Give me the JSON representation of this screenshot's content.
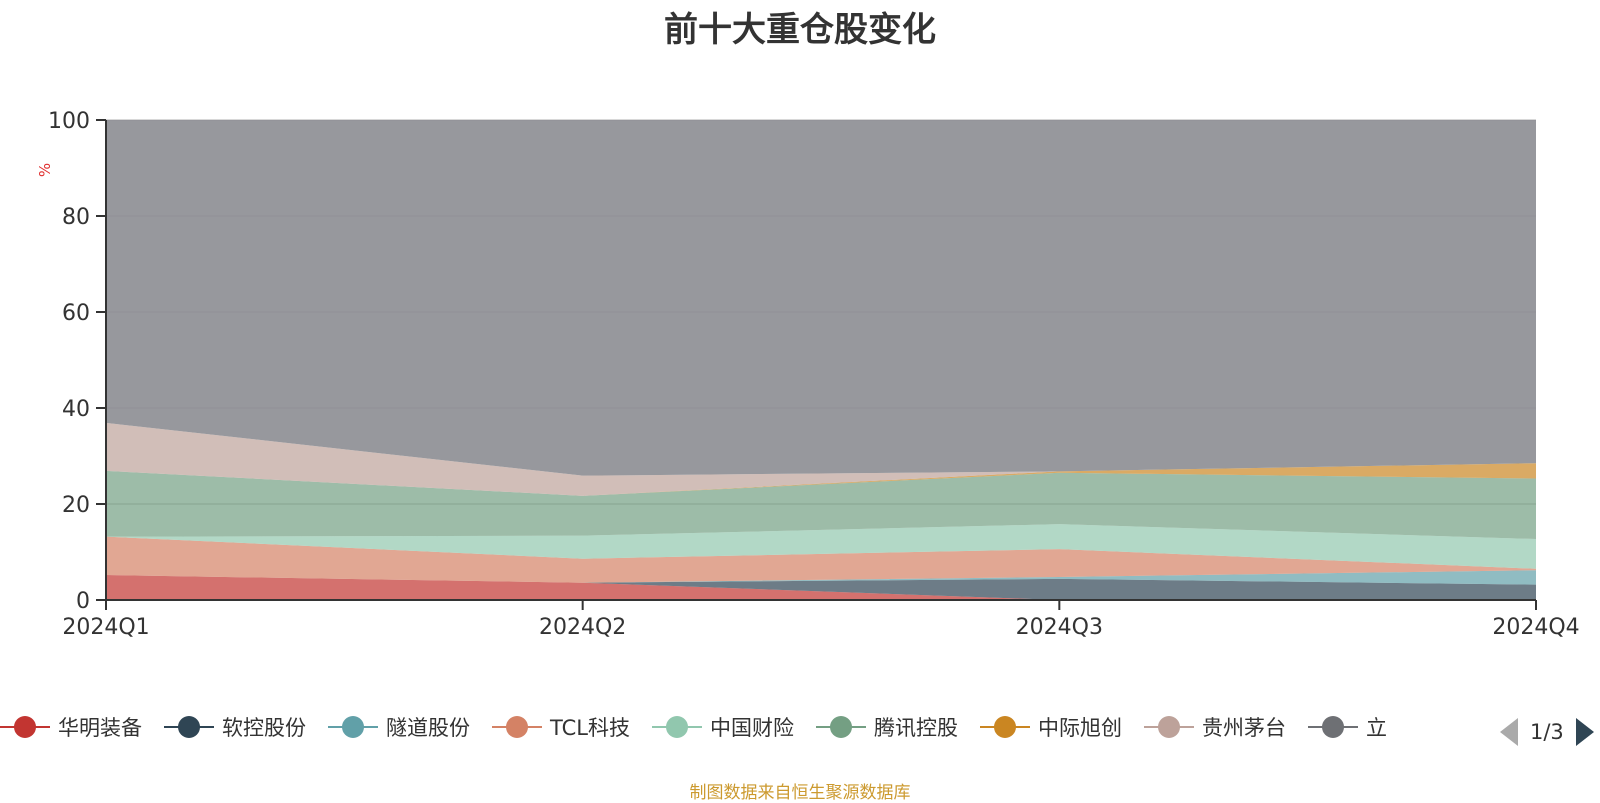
{
  "title": "前十大重仓股变化",
  "source_note": "制图数据来自恒生聚源数据库",
  "legend_pager": {
    "text": "1/3"
  },
  "colors": {
    "grid": "#cccccc",
    "axis": "#333333",
    "unit": "#e03030",
    "other": "#8c8d92"
  },
  "chart_data": {
    "type": "area",
    "stacked": true,
    "categories": [
      "2024Q1",
      "2024Q2",
      "2024Q3",
      "2024Q4"
    ],
    "ylim": [
      0,
      100
    ],
    "yticks": [
      0,
      20,
      40,
      60,
      80,
      100
    ],
    "ylabel": "%",
    "grid": true,
    "legend_position": "bottom",
    "series": [
      {
        "name": "华明装备",
        "color": "#c23531",
        "values": [
          5.2,
          3.6,
          0,
          0
        ]
      },
      {
        "name": "软控股份",
        "color": "#2f4554",
        "values": [
          0,
          0,
          4.4,
          3.2
        ]
      },
      {
        "name": "隧道股份",
        "color": "#61a0a8",
        "values": [
          0,
          0,
          0.4,
          3.0
        ]
      },
      {
        "name": "TCL科技",
        "color": "#d48265",
        "values": [
          8.0,
          5.0,
          5.8,
          0.3
        ]
      },
      {
        "name": "中国财险",
        "color": "#91c7ae",
        "values": [
          0,
          4.8,
          5.2,
          6.2
        ]
      },
      {
        "name": "腾讯控股",
        "color": "#749f83",
        "values": [
          13.7,
          8.3,
          10.7,
          12.6
        ]
      },
      {
        "name": "中际旭创",
        "color": "#ca8622",
        "values": [
          0,
          0,
          0.3,
          3.2
        ]
      },
      {
        "name": "贵州茅台",
        "color": "#bda29a",
        "values": [
          10.0,
          4.2,
          0,
          0
        ]
      },
      {
        "name": "立",
        "color": "#6e7074",
        "values": [
          0,
          0,
          0,
          0
        ]
      },
      {
        "name": "",
        "color": "#546570",
        "values": [
          0,
          0,
          0,
          0
        ]
      },
      {
        "name": "",
        "color": "#c4ccd3",
        "values": [
          0,
          0,
          0,
          0
        ]
      }
    ],
    "other_series": {
      "color": "#8c8d92"
    }
  }
}
